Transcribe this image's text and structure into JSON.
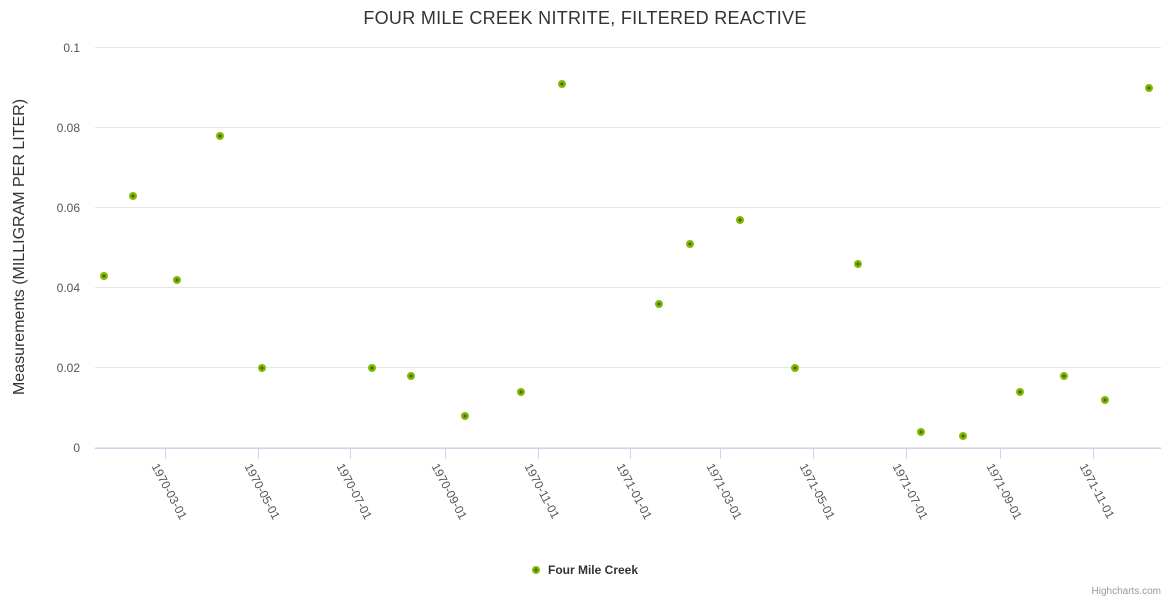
{
  "chart_data": {
    "type": "scatter",
    "title": "FOUR MILE CREEK NITRITE, FILTERED REACTIVE",
    "xlabel": "",
    "ylabel": "Measurements (MILLIGRAM PER LITER)",
    "ylim": [
      0,
      0.1
    ],
    "y_ticks": [
      {
        "value": 0,
        "label": "0"
      },
      {
        "value": 0.02,
        "label": "0.02"
      },
      {
        "value": 0.04,
        "label": "0.04"
      },
      {
        "value": 0.06,
        "label": "0.06"
      },
      {
        "value": 0.08,
        "label": "0.08"
      },
      {
        "value": 0.1,
        "label": "0.1"
      }
    ],
    "x_range": [
      "1970-01-14",
      "1971-12-16"
    ],
    "x_ticks": [
      "1970-03-01",
      "1970-05-01",
      "1970-07-01",
      "1970-09-01",
      "1970-11-01",
      "1971-01-01",
      "1971-03-01",
      "1971-05-01",
      "1971-07-01",
      "1971-09-01",
      "1971-11-01"
    ],
    "grid": "horizontal-only",
    "legend_position": "bottom-center",
    "series": [
      {
        "name": "Four Mile Creek",
        "color": "#84b808",
        "marker_center_color": "#3e6b00",
        "points": [
          [
            "1970-01-20",
            0.043
          ],
          [
            "1970-02-08",
            0.063
          ],
          [
            "1970-03-09",
            0.042
          ],
          [
            "1970-04-06",
            0.078
          ],
          [
            "1970-05-04",
            0.02
          ],
          [
            "1970-07-15",
            0.02
          ],
          [
            "1970-08-10",
            0.018
          ],
          [
            "1970-09-14",
            0.008
          ],
          [
            "1970-10-21",
            0.014
          ],
          [
            "1970-11-17",
            0.091
          ],
          [
            "1971-01-20",
            0.036
          ],
          [
            "1971-02-09",
            0.051
          ],
          [
            "1971-03-14",
            0.057
          ],
          [
            "1971-04-19",
            0.02
          ],
          [
            "1971-05-31",
            0.046
          ],
          [
            "1971-07-11",
            0.004
          ],
          [
            "1971-08-08",
            0.003
          ],
          [
            "1971-09-14",
            0.014
          ],
          [
            "1971-10-13",
            0.018
          ],
          [
            "1971-11-09",
            0.012
          ],
          [
            "1971-12-08",
            0.09
          ]
        ]
      }
    ]
  },
  "credits": {
    "label": "Highcharts.com"
  },
  "colors": {
    "background": "#ffffff",
    "title": "#333333",
    "axis_title": "#333333",
    "axis_label": "#555555",
    "gridline": "#e6e6e6",
    "axis_line": "#ccd6eb",
    "legend_text": "#333333",
    "credits": "#999999"
  }
}
